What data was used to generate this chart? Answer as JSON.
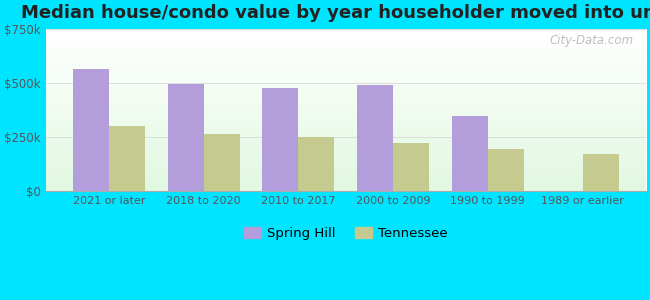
{
  "title": "Median house/condo value by year householder moved into unit",
  "categories": [
    "2021 or later",
    "2018 to 2020",
    "2010 to 2017",
    "2000 to 2009",
    "1990 to 1999",
    "1989 or earlier"
  ],
  "spring_hill_values": [
    565000,
    495000,
    475000,
    490000,
    345000,
    0
  ],
  "tennessee_values": [
    300000,
    262000,
    248000,
    220000,
    192000,
    170000
  ],
  "spring_hill_color": "#b39ddb",
  "tennessee_color": "#c5ca8e",
  "background_outer": "#00e5ff",
  "ylim": [
    0,
    750000
  ],
  "yticks": [
    0,
    250000,
    500000,
    750000
  ],
  "ytick_labels": [
    "$0",
    "$250k",
    "$500k",
    "$750k"
  ],
  "title_fontsize": 13,
  "legend_labels": [
    "Spring Hill",
    "Tennessee"
  ],
  "watermark": "City-Data.com",
  "bar_width": 0.38,
  "grid_color": "#cccccc"
}
